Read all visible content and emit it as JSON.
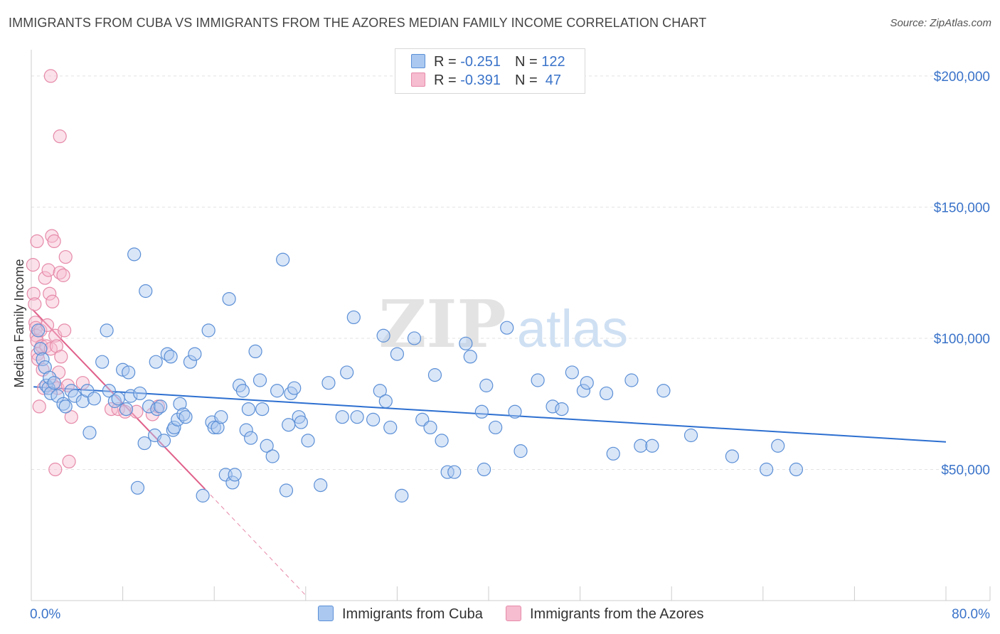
{
  "title": "IMMIGRANTS FROM CUBA VS IMMIGRANTS FROM THE AZORES MEDIAN FAMILY INCOME CORRELATION CHART",
  "source": "Source: ZipAtlas.com",
  "watermark": {
    "part1": "ZIP",
    "part2": "atlas"
  },
  "legend": {
    "r_label": "R =",
    "n_label": "N =",
    "cuba": {
      "r": "-0.251",
      "n": "122"
    },
    "azores": {
      "r": "-0.391",
      "n": "47"
    }
  },
  "bottom_legend": {
    "cuba": "Immigrants from Cuba",
    "azores": "Immigrants from the Azores"
  },
  "colors": {
    "cuba_fill": "#aac8f0",
    "cuba_stroke": "#5b8fd6",
    "cuba_line": "#2d6fd0",
    "azores_fill": "#f6bcd0",
    "azores_stroke": "#e68aa8",
    "azores_line": "#e0608a",
    "tick": "#3a73c9",
    "grid": "#e2e2e2"
  },
  "chart_data": {
    "type": "scatter",
    "title": "IMMIGRANTS FROM CUBA VS IMMIGRANTS FROM THE AZORES MEDIAN FAMILY INCOME CORRELATION CHART",
    "xlabel": "",
    "ylabel": "Median Family Income",
    "x_tick_labels": {
      "min": "0.0%",
      "max": "80.0%"
    },
    "xlim": [
      0,
      80
    ],
    "ylim": [
      0,
      210000
    ],
    "y_ticks": [
      {
        "value": 50000,
        "label": "$50,000"
      },
      {
        "value": 100000,
        "label": "$100,000"
      },
      {
        "value": 150000,
        "label": "$150,000"
      },
      {
        "value": 200000,
        "label": "$200,000"
      }
    ],
    "series": [
      {
        "name": "Immigrants from Cuba",
        "r": -0.251,
        "n": 122,
        "trend": {
          "x0": 0.2,
          "y0": 81500,
          "x1": 80,
          "y1": 60500
        },
        "points": [
          [
            0.6,
            103000
          ],
          [
            0.8,
            96000
          ],
          [
            1.0,
            92000
          ],
          [
            1.2,
            89000
          ],
          [
            1.3,
            82000
          ],
          [
            1.5,
            81000
          ],
          [
            1.6,
            85000
          ],
          [
            1.7,
            79000
          ],
          [
            2.0,
            83000
          ],
          [
            2.3,
            78000
          ],
          [
            2.8,
            75000
          ],
          [
            3.0,
            74000
          ],
          [
            3.5,
            80000
          ],
          [
            3.8,
            78000
          ],
          [
            4.5,
            76000
          ],
          [
            4.9,
            80000
          ],
          [
            5.1,
            64000
          ],
          [
            5.5,
            77000
          ],
          [
            6.2,
            91000
          ],
          [
            6.6,
            103000
          ],
          [
            6.8,
            80000
          ],
          [
            7.3,
            76000
          ],
          [
            7.6,
            77000
          ],
          [
            8.0,
            88000
          ],
          [
            8.3,
            73000
          ],
          [
            8.5,
            87000
          ],
          [
            8.7,
            78000
          ],
          [
            9.0,
            132000
          ],
          [
            9.3,
            43000
          ],
          [
            9.5,
            79000
          ],
          [
            9.9,
            60000
          ],
          [
            10.0,
            118000
          ],
          [
            10.3,
            74000
          ],
          [
            10.8,
            63000
          ],
          [
            10.9,
            91000
          ],
          [
            11.0,
            73000
          ],
          [
            11.3,
            74000
          ],
          [
            11.6,
            61000
          ],
          [
            11.9,
            94000
          ],
          [
            12.2,
            93000
          ],
          [
            12.4,
            65000
          ],
          [
            12.5,
            66000
          ],
          [
            12.8,
            69000
          ],
          [
            13.0,
            75000
          ],
          [
            13.3,
            71000
          ],
          [
            13.5,
            70000
          ],
          [
            13.9,
            91000
          ],
          [
            14.3,
            94000
          ],
          [
            15.0,
            40000
          ],
          [
            15.5,
            103000
          ],
          [
            15.8,
            68000
          ],
          [
            16.0,
            66000
          ],
          [
            16.3,
            66000
          ],
          [
            16.6,
            70000
          ],
          [
            17.0,
            48000
          ],
          [
            17.3,
            115000
          ],
          [
            17.6,
            45000
          ],
          [
            17.8,
            48000
          ],
          [
            18.2,
            82000
          ],
          [
            18.5,
            80000
          ],
          [
            18.8,
            65000
          ],
          [
            19.0,
            73000
          ],
          [
            19.2,
            62000
          ],
          [
            19.6,
            95000
          ],
          [
            20.0,
            84000
          ],
          [
            20.2,
            73000
          ],
          [
            20.6,
            59000
          ],
          [
            21.1,
            55000
          ],
          [
            21.5,
            80000
          ],
          [
            22.0,
            130000
          ],
          [
            22.3,
            42000
          ],
          [
            22.5,
            67000
          ],
          [
            22.7,
            79000
          ],
          [
            23.0,
            81000
          ],
          [
            23.4,
            70000
          ],
          [
            23.6,
            68000
          ],
          [
            24.2,
            61000
          ],
          [
            25.3,
            44000
          ],
          [
            26.0,
            83000
          ],
          [
            27.2,
            70000
          ],
          [
            27.6,
            87000
          ],
          [
            28.2,
            108000
          ],
          [
            28.5,
            70000
          ],
          [
            29.9,
            69000
          ],
          [
            30.5,
            80000
          ],
          [
            30.8,
            101000
          ],
          [
            31.0,
            76000
          ],
          [
            31.4,
            66000
          ],
          [
            32.0,
            94000
          ],
          [
            32.4,
            40000
          ],
          [
            33.5,
            100000
          ],
          [
            34.2,
            69000
          ],
          [
            34.9,
            66000
          ],
          [
            35.3,
            86000
          ],
          [
            35.9,
            61000
          ],
          [
            36.4,
            49000
          ],
          [
            37.0,
            49000
          ],
          [
            38.0,
            98000
          ],
          [
            38.4,
            93000
          ],
          [
            39.4,
            72000
          ],
          [
            39.6,
            50000
          ],
          [
            39.8,
            82000
          ],
          [
            40.6,
            66000
          ],
          [
            41.6,
            104000
          ],
          [
            42.3,
            72000
          ],
          [
            42.8,
            57000
          ],
          [
            44.3,
            84000
          ],
          [
            45.6,
            74000
          ],
          [
            46.4,
            73000
          ],
          [
            47.3,
            87000
          ],
          [
            48.3,
            80000
          ],
          [
            48.6,
            83000
          ],
          [
            50.3,
            79000
          ],
          [
            50.9,
            56000
          ],
          [
            52.5,
            84000
          ],
          [
            53.3,
            59000
          ],
          [
            54.3,
            59000
          ],
          [
            55.3,
            80000
          ],
          [
            57.7,
            63000
          ],
          [
            61.3,
            55000
          ],
          [
            64.3,
            50000
          ],
          [
            65.3,
            59000
          ],
          [
            66.9,
            50000
          ]
        ]
      },
      {
        "name": "Immigrants from the Azores",
        "r": -0.391,
        "n": 47,
        "trend": {
          "x0": 0.1,
          "y0": 111000,
          "x1": 15.2,
          "y1": 42500
        },
        "trend_extension": {
          "x0": 15.2,
          "y0": 42500,
          "x1": 24.0,
          "y1": 2000
        },
        "points": [
          [
            0.15,
            128000
          ],
          [
            0.2,
            117000
          ],
          [
            0.3,
            113000
          ],
          [
            0.35,
            106000
          ],
          [
            0.4,
            104000
          ],
          [
            0.45,
            101000
          ],
          [
            0.5,
            99000
          ],
          [
            0.55,
            94000
          ],
          [
            0.6,
            92000
          ],
          [
            0.5,
            137000
          ],
          [
            0.7,
            74000
          ],
          [
            0.8,
            103000
          ],
          [
            0.9,
            97000
          ],
          [
            1.0,
            88000
          ],
          [
            1.1,
            81000
          ],
          [
            1.2,
            123000
          ],
          [
            1.3,
            97000
          ],
          [
            1.4,
            105000
          ],
          [
            1.5,
            126000
          ],
          [
            1.6,
            117000
          ],
          [
            1.7,
            96000
          ],
          [
            1.8,
            139000
          ],
          [
            1.85,
            114000
          ],
          [
            1.9,
            82000
          ],
          [
            2.0,
            137000
          ],
          [
            2.1,
            101000
          ],
          [
            2.2,
            97000
          ],
          [
            2.3,
            81000
          ],
          [
            2.4,
            87000
          ],
          [
            2.5,
            125000
          ],
          [
            2.6,
            93000
          ],
          [
            1.7,
            200000
          ],
          [
            2.5,
            177000
          ],
          [
            2.8,
            124000
          ],
          [
            2.9,
            103000
          ],
          [
            3.0,
            131000
          ],
          [
            2.1,
            50000
          ],
          [
            3.2,
            82000
          ],
          [
            3.3,
            53000
          ],
          [
            3.5,
            70000
          ],
          [
            4.5,
            83000
          ],
          [
            7.0,
            73000
          ],
          [
            7.6,
            73000
          ],
          [
            8.2,
            72000
          ],
          [
            9.2,
            72000
          ],
          [
            10.6,
            71000
          ],
          [
            11.1,
            74000
          ]
        ]
      }
    ]
  }
}
